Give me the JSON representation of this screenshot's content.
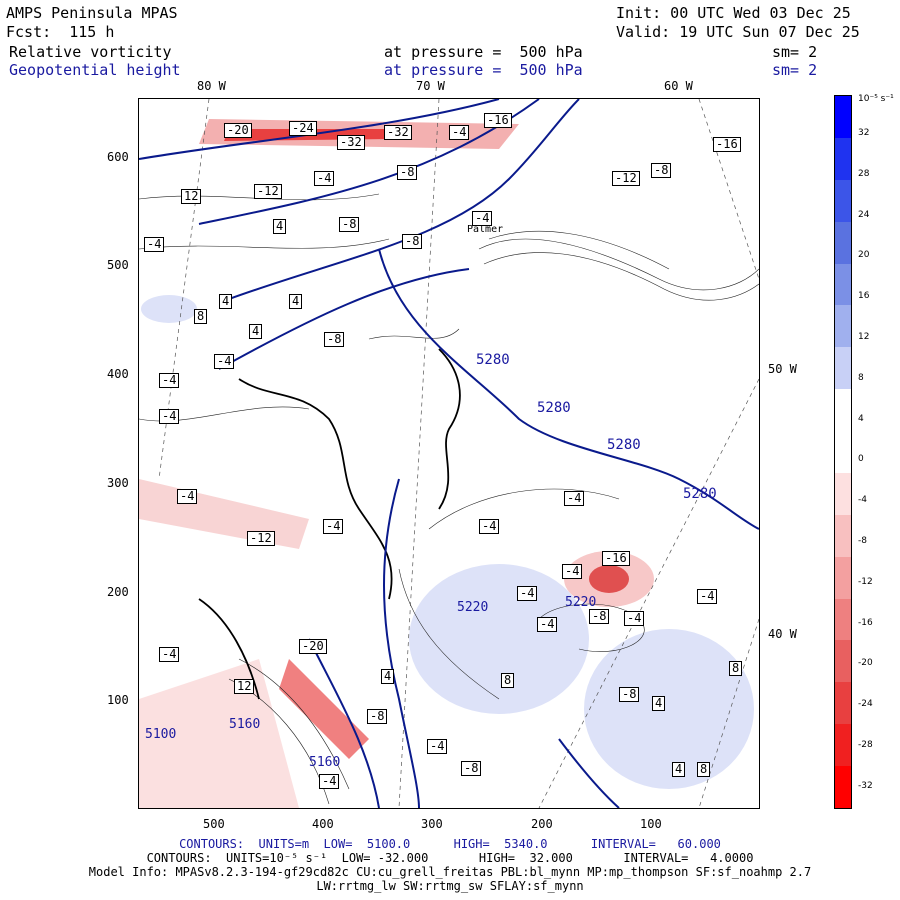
{
  "header": {
    "title": "AMPS Peninsula MPAS",
    "forecast": "Fcst:  115 h",
    "init": "Init: 00 UTC Wed 03 Dec 25",
    "valid": "Valid: 19 UTC Sun 07 Dec 25",
    "field1": "Relative vorticity",
    "field1_level": "at pressure =  500 hPa",
    "field1_sm": "sm= 2",
    "field2": "Geopotential height",
    "field2_level": "at pressure =  500 hPa",
    "field2_sm": "sm= 2"
  },
  "lon_labels": {
    "top": [
      "80 W",
      "70 W",
      "60 W"
    ],
    "right": [
      "50 W",
      "40 W"
    ]
  },
  "x_ticks": [
    "500",
    "400",
    "300",
    "200",
    "100"
  ],
  "y_ticks": [
    "600",
    "500",
    "400",
    "300",
    "200",
    "100"
  ],
  "place_label": "Palmer",
  "colorbar": {
    "title": "10⁻⁵ s⁻¹",
    "ticks": [
      "32",
      "28",
      "24",
      "20",
      "16",
      "12",
      "8",
      "4",
      "0",
      "-4",
      "-8",
      "-12",
      "-16",
      "-20",
      "-24",
      "-28",
      "-32"
    ],
    "colors_top_to_bottom": [
      "#0000ff",
      "#1f33f0",
      "#3c55e8",
      "#5a72e0",
      "#7b90e6",
      "#a0b0ee",
      "#c8d0f6",
      "#ffffff",
      "#ffffff",
      "#fde0e0",
      "#f8c0c0",
      "#f3a0a0",
      "#ee8080",
      "#e86060",
      "#e84040",
      "#f02020",
      "#ff0000"
    ]
  },
  "height_contours": [
    "5280",
    "5280",
    "5280",
    "5280",
    "5160",
    "5160",
    "5220",
    "5220",
    "5100"
  ],
  "vort_labels": [
    "-20",
    "-24",
    "-32",
    "-32",
    "-4",
    "-16",
    "-16",
    "-4",
    "-8",
    "-12",
    "-8",
    "12",
    "-12",
    "-4",
    "-8",
    "-8",
    "-4",
    "4",
    "8",
    "4",
    "4",
    "4",
    "-8",
    "-4",
    "-4",
    "-4",
    "-4",
    "-4",
    "-12",
    "-4",
    "-4",
    "-4",
    "-16",
    "-4",
    "-4",
    "-4",
    "-8",
    "8",
    "-8",
    "4",
    "-4",
    "-4",
    "12",
    "-20",
    "-8",
    "-4",
    "-8",
    "-4",
    "4",
    "8",
    "4",
    "8"
  ],
  "footer": {
    "line1": "CONTOURS:  UNITS=m  LOW=  5100.0      HIGH=  5340.0      INTERVAL=   60.000",
    "line2": "CONTOURS:  UNITS=10⁻⁵ s⁻¹  LOW= -32.000       HIGH=  32.000       INTERVAL=   4.0000",
    "line3": "Model Info: MPASv8.2.3-194-gf29cd82c CU:cu_grell_freitas PBL:bl_mynn MP:mp_thompson SF:sf_noahmp 2.7",
    "line4": "LW:rrtmg_lw SW:rrtmg_sw SFLAY:sf_mynn"
  }
}
